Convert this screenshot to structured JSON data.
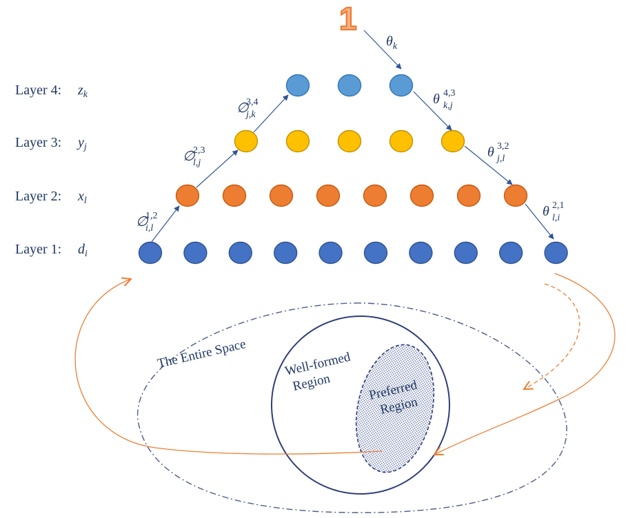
{
  "top_node": {
    "label": "1"
  },
  "layers": [
    {
      "id": 4,
      "label": "Layer 4:",
      "var": "z",
      "sub": "k",
      "color": "#5b9bd5",
      "stroke": "#2e75b6",
      "count": 3
    },
    {
      "id": 3,
      "label": "Layer 3:",
      "var": "y",
      "sub": "j",
      "color": "#ffc000",
      "stroke": "#bf9000",
      "count": 5
    },
    {
      "id": 2,
      "label": "Layer 2:",
      "var": "x",
      "sub": "l",
      "color": "#ed7d31",
      "stroke": "#c55a11",
      "count": 8
    },
    {
      "id": 1,
      "label": "Layer 1:",
      "var": "d",
      "sub": "i",
      "color": "#4472c4",
      "stroke": "#2f528f",
      "count": 10
    }
  ],
  "edge_labels": {
    "theta_k": {
      "base": "θ",
      "sub": "k",
      "sup": ""
    },
    "theta_kj": {
      "base": "θ",
      "sub": "k,j",
      "sup": "4,3"
    },
    "theta_jl": {
      "base": "θ",
      "sub": "j,l",
      "sup": "3,2"
    },
    "theta_li": {
      "base": "θ",
      "sub": "l,i",
      "sup": "2,1"
    },
    "phi_jk": {
      "base": "∅",
      "sub": "j,k",
      "sup": "3,4"
    },
    "phi_lj": {
      "base": "∅",
      "sub": "l,j",
      "sup": "2,3"
    },
    "phi_il": {
      "base": "∅",
      "sub": "i,l",
      "sup": "1,2"
    }
  },
  "regions": {
    "entire_space": "The Entire Space",
    "well_formed": [
      "Well-formed",
      "Region"
    ],
    "preferred": [
      "Preferred",
      "Region"
    ]
  },
  "colors": {
    "text": "#1f3864",
    "arrow": "#2f5597",
    "feedback": "#ed7d31",
    "region_border": "#2f3d7a",
    "entire_space_border": "#4a5a8a"
  }
}
